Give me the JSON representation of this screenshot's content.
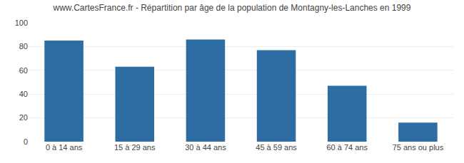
{
  "chart_data": {
    "type": "bar",
    "title": "www.CartesFrance.fr - Répartition par âge de la population de Montagny-les-Lanches en 1999",
    "categories": [
      "0 à 14 ans",
      "15 à 29 ans",
      "30 à 44 ans",
      "45 à 59 ans",
      "60 à 74 ans",
      "75 ans ou plus"
    ],
    "values": [
      85,
      63,
      86,
      77,
      47,
      16
    ],
    "color": "#2e6da4",
    "ylim": [
      0,
      100
    ],
    "yticks": [
      0,
      20,
      40,
      60,
      80,
      100
    ],
    "grid": true
  }
}
